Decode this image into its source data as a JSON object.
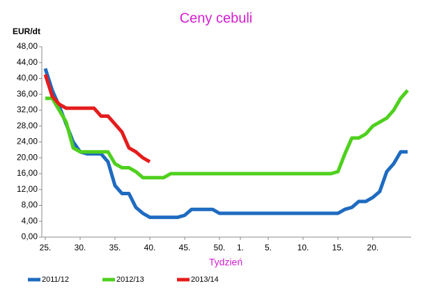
{
  "chart_data": {
    "type": "line",
    "title": "Ceny cebuli",
    "y_label": "EUR/dt",
    "x_label": "Tydzień",
    "categories": [
      "25.",
      null,
      null,
      null,
      null,
      "30.",
      null,
      null,
      null,
      null,
      "35.",
      null,
      null,
      null,
      null,
      "40.",
      null,
      null,
      null,
      null,
      "45.",
      null,
      null,
      null,
      null,
      "50.",
      null,
      null,
      "1.",
      null,
      null,
      null,
      "5.",
      null,
      null,
      null,
      null,
      "10.",
      null,
      null,
      null,
      null,
      "15.",
      null,
      null,
      null,
      null,
      "20.",
      null,
      null,
      null,
      null,
      null
    ],
    "series": [
      {
        "name": "2011/12",
        "color": "#1f6bc0",
        "values": [
          42.5,
          37,
          33,
          28.5,
          24,
          21.5,
          21,
          21,
          21,
          19,
          13,
          11,
          11,
          7.5,
          6,
          5,
          5,
          5,
          5,
          5,
          5.5,
          7,
          7,
          7,
          7,
          6,
          6,
          6,
          6,
          6,
          6,
          6,
          6,
          6,
          6,
          6,
          6,
          6,
          6,
          6,
          6,
          6,
          6,
          7,
          7.5,
          9,
          9,
          10,
          11.5,
          16.5,
          18.5,
          21.5,
          21.5
        ]
      },
      {
        "name": "2012/13",
        "color": "#4fd01e",
        "values": [
          35,
          35,
          32,
          29,
          22.5,
          21.5,
          21.5,
          21.5,
          21.5,
          21.5,
          18.5,
          17.5,
          17.5,
          16.5,
          15,
          15,
          15,
          15,
          16,
          16,
          16,
          16,
          16,
          16,
          16,
          16,
          16,
          16,
          16,
          16,
          16,
          16,
          16,
          16,
          16,
          16,
          16,
          16,
          16,
          16,
          16,
          16,
          16.5,
          21,
          25,
          25,
          26,
          28,
          29,
          30,
          32,
          35,
          37
        ]
      },
      {
        "name": "2013/14",
        "color": "#e51c1c",
        "values": [
          41,
          35.5,
          33.5,
          32.5,
          32.5,
          32.5,
          32.5,
          32.5,
          30.5,
          30.5,
          28.5,
          26.5,
          22.5,
          21.5,
          20,
          19,
          null,
          null,
          null,
          null,
          null,
          null,
          null,
          null,
          null,
          null,
          null,
          null,
          null,
          null,
          null,
          null,
          null,
          null,
          null,
          null,
          null,
          null,
          null,
          null,
          null,
          null,
          null,
          null,
          null,
          null,
          null,
          null,
          null,
          null,
          null,
          null,
          null
        ]
      }
    ],
    "ylim": [
      0,
      48
    ],
    "yticks": [
      {
        "value": 0,
        "label": "0,00"
      },
      {
        "value": 4,
        "label": "4,00"
      },
      {
        "value": 8,
        "label": "8,00"
      },
      {
        "value": 12,
        "label": "12,00"
      },
      {
        "value": 16,
        "label": "16,00"
      },
      {
        "value": 20,
        "label": "20,00"
      },
      {
        "value": 24,
        "label": "24,00"
      },
      {
        "value": 28,
        "label": "28,00"
      },
      {
        "value": 32,
        "label": "32,00"
      },
      {
        "value": 36,
        "label": "36,00"
      },
      {
        "value": 40,
        "label": "40,00"
      },
      {
        "value": 44,
        "label": "44,00"
      },
      {
        "value": 48,
        "label": "48,00"
      }
    ],
    "grid": false,
    "legend": "bottom"
  }
}
